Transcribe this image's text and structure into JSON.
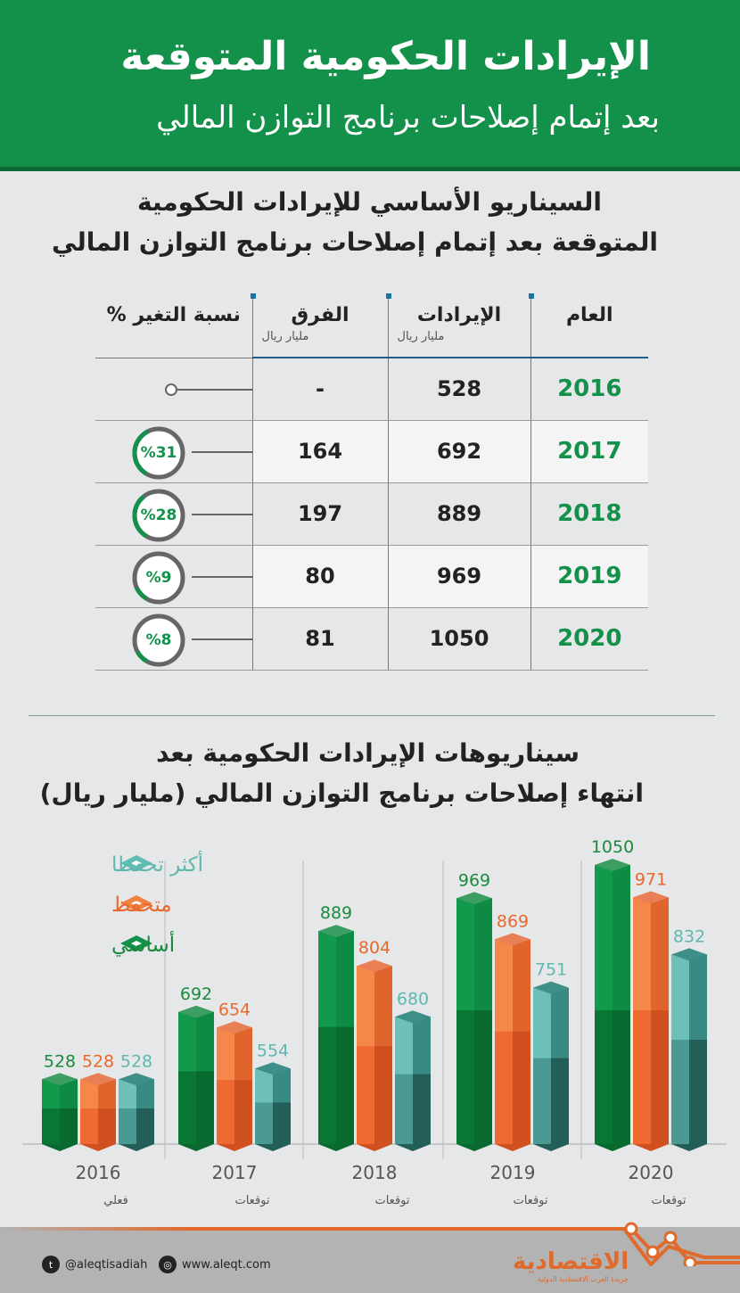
{
  "header": {
    "title": "الإيرادات الحكومية المتوقعة",
    "subtitle": "بعد إتمام إصلاحات برنامج التوازن المالي"
  },
  "table_section": {
    "title_line1": "السيناريو الأساسي للإيرادات الحكومية",
    "title_line2": "المتوقعة بعد إتمام إصلاحات برنامج التوازن المالي"
  },
  "table": {
    "headers": {
      "year": "العام",
      "revenue": "الإيرادات",
      "revenue_unit": "مليار ريال",
      "diff": "الفرق",
      "diff_unit": "مليار ريال",
      "change": "نسبة التغير %"
    },
    "rows": [
      {
        "year": "2016",
        "revenue": "528",
        "diff": "-",
        "change": "",
        "change_value": 0
      },
      {
        "year": "2017",
        "revenue": "692",
        "diff": "164",
        "change": "%31",
        "change_value": 31
      },
      {
        "year": "2018",
        "revenue": "889",
        "diff": "197",
        "change": "%28",
        "change_value": 28
      },
      {
        "year": "2019",
        "revenue": "969",
        "diff": "80",
        "change": "%9",
        "change_value": 9
      },
      {
        "year": "2020",
        "revenue": "1050",
        "diff": "81",
        "change": "%8",
        "change_value": 8
      }
    ]
  },
  "chart_section": {
    "title_line1": "سيناريوهات الإيرادات الحكومية بعد",
    "title_line2": "انتهاء إصلاحات برنامج التوازن المالي (مليار ريال)"
  },
  "chart_data": {
    "type": "bar",
    "title": "سيناريوهات الإيرادات الحكومية بعد انتهاء إصلاحات برنامج التوازن المالي (مليار ريال)",
    "categories": [
      "2016",
      "2017",
      "2018",
      "2019",
      "2020"
    ],
    "category_sublabels": [
      "فعلي",
      "توقعات",
      "توقعات",
      "توقعات",
      "توقعات"
    ],
    "series": [
      {
        "name": "أساسي",
        "color": "#13914a",
        "label_color": "#1a8a3e",
        "values": [
          528,
          692,
          889,
          969,
          1050
        ]
      },
      {
        "name": "متحفظ",
        "color": "#f0813f",
        "label_color": "#e8692d",
        "values": [
          528,
          654,
          804,
          869,
          971
        ]
      },
      {
        "name": "أكثر تحفظا",
        "color": "#5fbdb4",
        "label_color": "#5fb8b0",
        "values": [
          528,
          554,
          680,
          751,
          832
        ]
      }
    ],
    "ylim": [
      370,
      1050
    ],
    "legend": "top-left"
  },
  "footer": {
    "twitter": "@aleqtisadiah",
    "website": "www.aleqt.com",
    "logo": "الاقتصادية",
    "logo_tagline": "جريدة العرب الاقتصادية الدولية"
  }
}
